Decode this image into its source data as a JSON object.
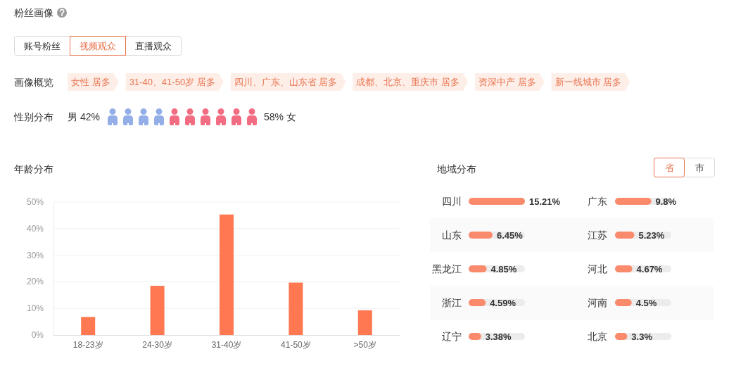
{
  "chart_data": [
    {
      "type": "other",
      "title": "粉丝画像",
      "annotations": [
        "账号粉丝",
        "视频观众",
        "直播观众"
      ]
    },
    {
      "type": "other",
      "title": "画像概览",
      "annotations": [
        "女性 居多",
        "31-40、41-50岁 居多",
        "四川、广东、山东省 居多",
        "成都、北京、重庆市 居多",
        "资深中产 居多",
        "新一线城市 居多"
      ]
    },
    {
      "type": "other",
      "title": "性别分布",
      "categories": [
        "男",
        "女"
      ],
      "values": [
        42,
        58
      ],
      "colors": [
        "#94aee8",
        "#f26d82"
      ],
      "value_labels": [
        "42%",
        "58%"
      ]
    },
    {
      "type": "bar",
      "title": "年龄分布",
      "categories": [
        "18-23岁",
        "24-30岁",
        "31-40岁",
        "41-50岁",
        ">50岁"
      ],
      "values": [
        6.8,
        18.5,
        45.3,
        19.7,
        9.3
      ],
      "color": "#ff7852",
      "ylim": [
        0,
        50
      ],
      "yticks": [
        {
          "value": 0,
          "label": "0%"
        },
        {
          "value": 10,
          "label": "10%"
        },
        {
          "value": 20,
          "label": "20%"
        },
        {
          "value": 30,
          "label": "30%"
        },
        {
          "value": 40,
          "label": "40%"
        },
        {
          "value": 50,
          "label": "50%"
        }
      ],
      "grid": "y"
    },
    {
      "type": "bar",
      "orientation": "horizontal",
      "title": "地域分布",
      "annotations": [
        "省",
        "市"
      ],
      "categories": [
        "四川",
        "山东",
        "黑龙江",
        "浙江",
        "辽宁"
      ],
      "values": [
        15.21,
        6.45,
        4.85,
        4.59,
        3.38
      ],
      "color": "#fa8a6c",
      "value_labels": [
        "15.21%",
        "6.45%",
        "4.85%",
        "4.59%",
        "3.38%"
      ]
    },
    {
      "type": "bar",
      "orientation": "horizontal",
      "categories": [
        "广东",
        "江苏",
        "河北",
        "河南",
        "北京"
      ],
      "values": [
        9.8,
        5.23,
        4.67,
        4.5,
        3.3
      ],
      "color": "#fa8a6c",
      "value_labels": [
        "9.8%",
        "5.23%",
        "4.67%",
        "4.5%",
        "3.3%"
      ]
    }
  ]
}
